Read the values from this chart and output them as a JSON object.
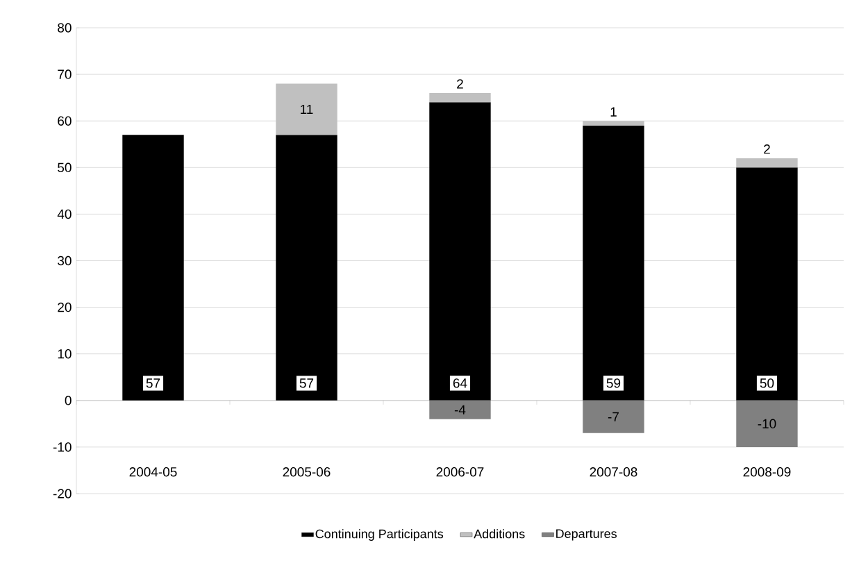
{
  "chart_data": {
    "type": "bar",
    "stacked": true,
    "categories": [
      "2004-05",
      "2005-06",
      "2006-07",
      "2007-08",
      "2008-09"
    ],
    "series": [
      {
        "name": "Continuing Participants",
        "color": "#000000",
        "values": [
          57,
          57,
          64,
          59,
          50
        ]
      },
      {
        "name": "Additions",
        "color": "#c0c0c0",
        "values": [
          null,
          11,
          2,
          1,
          2
        ]
      },
      {
        "name": "Departures",
        "color": "#808080",
        "values": [
          null,
          null,
          -4,
          -7,
          -10
        ]
      }
    ],
    "ylim": [
      -20,
      80
    ],
    "yticks": [
      -20,
      -10,
      0,
      10,
      20,
      30,
      40,
      50,
      60,
      70,
      80
    ],
    "grid": "y",
    "legend": "bottom",
    "data_labels": true
  }
}
